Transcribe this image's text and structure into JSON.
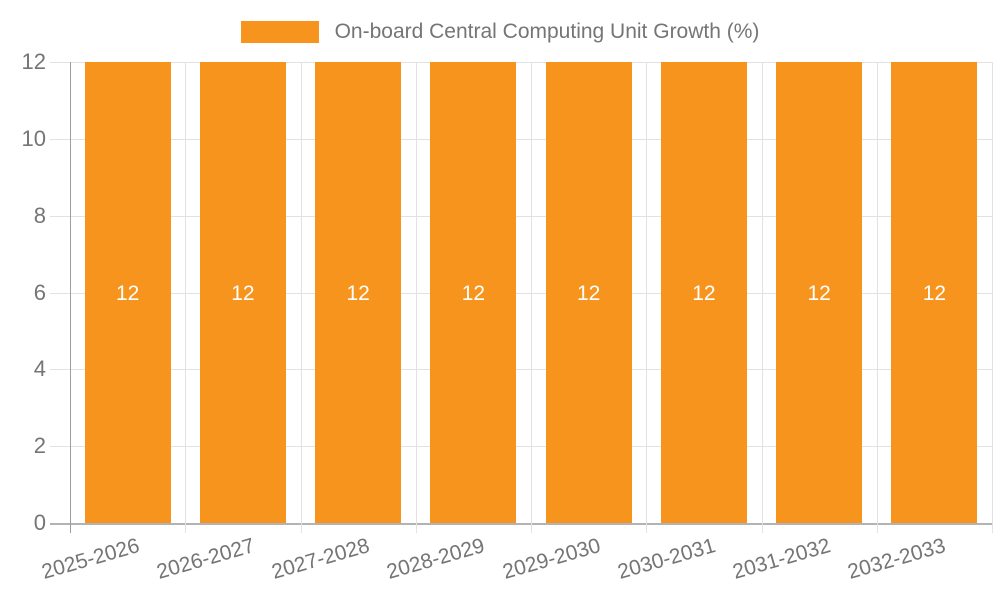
{
  "legend": {
    "label": "On-board Central Computing Unit Growth (%)",
    "swatch_color": "#F7941E"
  },
  "chart_data": {
    "type": "bar",
    "title": "On-board Central Computing Unit Growth (%)",
    "categories": [
      "2025-2026",
      "2026-2027",
      "2027-2028",
      "2028-2029",
      "2029-2030",
      "2030-2031",
      "2031-2032",
      "2032-2033"
    ],
    "values": [
      12,
      12,
      12,
      12,
      12,
      12,
      12,
      12
    ],
    "value_labels": [
      "12",
      "12",
      "12",
      "12",
      "12",
      "12",
      "12",
      "12"
    ],
    "xlabel": "",
    "ylabel": "",
    "ylim": [
      0,
      12
    ],
    "yticks": [
      0,
      2,
      4,
      6,
      8,
      10,
      12
    ],
    "grid": true,
    "legend_position": "top-center",
    "colors": {
      "bar": "#F7941E",
      "value_label": "#FFFFFF",
      "axis_text": "#757575",
      "gridline": "#E2E2E2",
      "y_axis_line": "#9E9E9E",
      "x_axis_line": "#B3B3B3",
      "background": "#FFFFFF"
    }
  }
}
